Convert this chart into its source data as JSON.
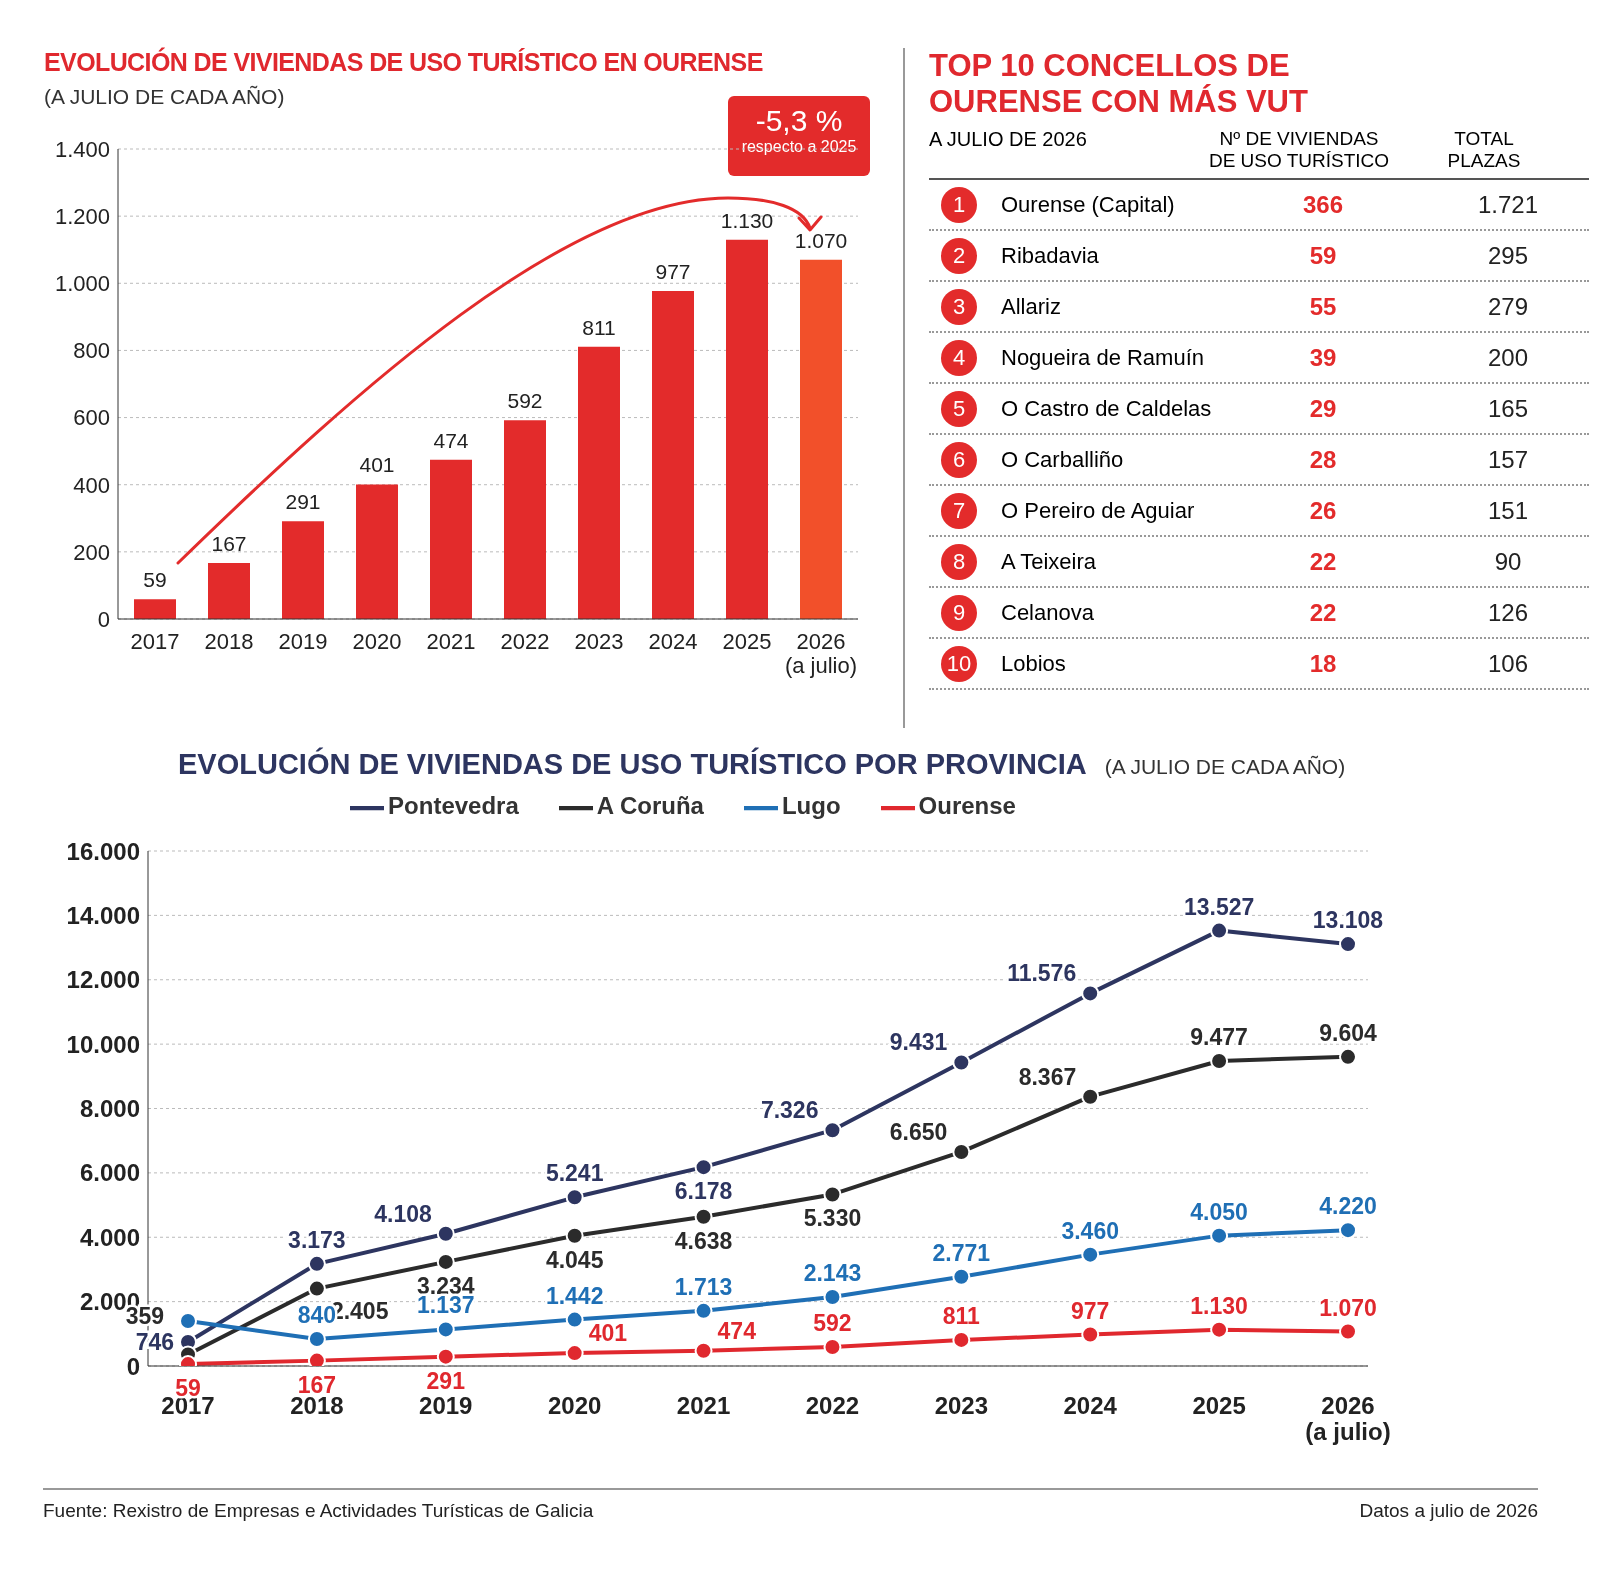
{
  "chart_data": [
    {
      "type": "bar",
      "title": "EVOLUCIÓN DE VIVIENDAS DE USO TURÍSTICO EN OURENSE",
      "subtitle": "(A JULIO DE CADA AÑO)",
      "categories": [
        "2017",
        "2018",
        "2019",
        "2020",
        "2021",
        "2022",
        "2023",
        "2024",
        "2025",
        "2026\n(a julio)"
      ],
      "values": [
        59,
        167,
        291,
        401,
        474,
        592,
        811,
        977,
        1130,
        1070
      ],
      "value_labels": [
        "59",
        "167",
        "291",
        "401",
        "474",
        "592",
        "811",
        "977",
        "1.130",
        "1.070"
      ],
      "colors": [
        "#e32b2b",
        "#e32b2b",
        "#e32b2b",
        "#e32b2b",
        "#e32b2b",
        "#e32b2b",
        "#e32b2b",
        "#e32b2b",
        "#e32b2b",
        "#f2502a"
      ],
      "ylim": [
        0,
        1400
      ],
      "yticks": [
        0,
        200,
        400,
        600,
        800,
        {
          "value": 1000,
          "label": "1.000"
        },
        {
          "value": 1200,
          "label": "1.200"
        },
        {
          "value": 1400,
          "label": "1.400"
        }
      ],
      "grid": "y",
      "annotations": [
        "-5,3 %",
        "respecto a 2025"
      ]
    },
    {
      "type": "heatmap",
      "title": "TOP 10 CONCELLOS DE OURENSE CON MÁS VUT",
      "subtitle": "A JULIO DE 2026",
      "categories": [
        "Nº DE VIVIENDAS\nDE USO TURÍSTICO",
        "TOTAL\nPLAZAS"
      ],
      "colors": [
        "#e32b2b",
        "#222222"
      ],
      "y_categories": [
        "Ourense (Capital)",
        "Ribadavia",
        "Allariz",
        "Nogueira de Ramuín",
        "O Castro de Caldelas",
        "O Carballiño",
        "O Pereiro de Aguiar",
        "A Teixeira",
        "Celanova",
        "Lobios"
      ],
      "y2_categories": [
        "1",
        "2",
        "3",
        "4",
        "5",
        "6",
        "7",
        "8",
        "9",
        "10"
      ],
      "cells": [
        [
          366,
          1721
        ],
        [
          59,
          295
        ],
        [
          55,
          279
        ],
        [
          39,
          200
        ],
        [
          29,
          165
        ],
        [
          28,
          157
        ],
        [
          26,
          151
        ],
        [
          22,
          90
        ],
        [
          22,
          126
        ],
        [
          18,
          106
        ]
      ],
      "cell_labels": [
        [
          "366",
          "1.721"
        ],
        [
          "59",
          "295"
        ],
        [
          "55",
          "279"
        ],
        [
          "39",
          "200"
        ],
        [
          "29",
          "165"
        ],
        [
          "28",
          "157"
        ],
        [
          "26",
          "151"
        ],
        [
          "22",
          "90"
        ],
        [
          "22",
          "126"
        ],
        [
          "18",
          "106"
        ]
      ]
    },
    {
      "type": "line",
      "title": "EVOLUCIÓN DE VIVIENDAS DE USO TURÍSTICO POR PROVINCIA",
      "subtitle": "(A JULIO DE CADA AÑO)",
      "categories": [
        "2017",
        "2018",
        "2019",
        "2020",
        "2021",
        "2022",
        "2023",
        "2024",
        "2025",
        "2026\n(a julio)"
      ],
      "series": [
        {
          "name": "Pontevedra",
          "color": "#2d3560",
          "values": [
            746,
            3173,
            4108,
            5241,
            6178,
            7326,
            9431,
            11576,
            13527,
            13108
          ],
          "value_labels": [
            "746",
            "3.173",
            "4.108",
            "5.241",
            "6.178",
            "7.326",
            "9.431",
            "11.576",
            "13.527",
            "13.108"
          ]
        },
        {
          "name": "A Coruña",
          "color": "#2b2b2b",
          "values": [
            359,
            2405,
            3234,
            4045,
            4638,
            5330,
            6650,
            8367,
            9477,
            9604
          ],
          "value_labels": [
            "359",
            "2.405",
            "3.234",
            "4.045",
            "4.638",
            "5.330",
            "6.650",
            "8.367",
            "9.477",
            "9.604"
          ]
        },
        {
          "name": "Lugo",
          "color": "#1f6fb5",
          "values": [
            1400,
            840,
            1137,
            1442,
            1713,
            2143,
            2771,
            3460,
            4050,
            4220
          ],
          "value_labels": [
            null,
            "840",
            "1.137",
            "1.442",
            "1.713",
            "2.143",
            "2.771",
            "3.460",
            "4.050",
            "4.220"
          ]
        },
        {
          "name": "Ourense",
          "color": "#e0282e",
          "values": [
            59,
            167,
            291,
            401,
            474,
            592,
            811,
            977,
            1130,
            1070
          ],
          "value_labels": [
            "59",
            "167",
            "291",
            "401",
            "474",
            "592",
            "811",
            "977",
            "1.130",
            "1.070"
          ]
        }
      ],
      "ylim": [
        0,
        16000
      ],
      "yticks": [
        0,
        {
          "value": 2000,
          "label": "2.000"
        },
        {
          "value": 4000,
          "label": "4.000"
        },
        {
          "value": 6000,
          "label": "6.000"
        },
        {
          "value": 8000,
          "label": "8.000"
        },
        {
          "value": 10000,
          "label": "10.000"
        },
        {
          "value": 12000,
          "label": "12.000"
        },
        {
          "value": 14000,
          "label": "14.000"
        },
        {
          "value": 16000,
          "label": "16.000"
        }
      ],
      "grid": "y",
      "legend": "top",
      "marker": "circle",
      "annotations": [
        "Fuente: Rexistro de Empresas e Actividades Turísticas de Galicia",
        "Datos a julio de 2026"
      ]
    }
  ]
}
